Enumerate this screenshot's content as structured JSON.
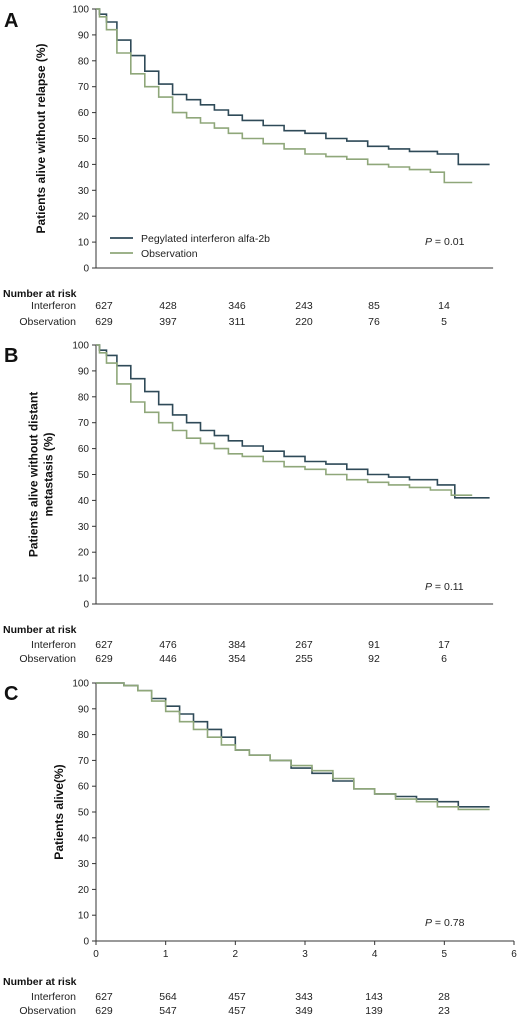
{
  "colors": {
    "interferon": "#2f4a58",
    "observation": "#8fa77a",
    "axis": "#333333"
  },
  "risk_title": "Number at risk",
  "chart_data": [
    {
      "type": "line",
      "panel": "A",
      "ylabel": [
        "Patients alive without relapse (%)"
      ],
      "xlim": [
        0,
        6
      ],
      "ylim": [
        0,
        100
      ],
      "yticks": [
        0,
        10,
        20,
        30,
        40,
        50,
        60,
        70,
        80,
        90,
        100
      ],
      "xticks": [],
      "legend": {
        "placement": "bottom-left",
        "entries": [
          "Pegylated interferon alfa-2b",
          "Observation"
        ]
      },
      "p_value": {
        "label": "P",
        "text": " = 0.01"
      },
      "series": [
        {
          "name": "Pegylated interferon alfa-2b",
          "color_key": "interferon",
          "x": [
            0,
            0.05,
            0.15,
            0.3,
            0.5,
            0.7,
            0.9,
            1.1,
            1.3,
            1.5,
            1.7,
            1.9,
            2.1,
            2.4,
            2.7,
            3.0,
            3.3,
            3.6,
            3.9,
            4.2,
            4.5,
            4.9,
            5.2,
            5.65
          ],
          "y": [
            100,
            98,
            95,
            88,
            82,
            76,
            71,
            67,
            65,
            63,
            61,
            59,
            57,
            55,
            53,
            52,
            50,
            49,
            47,
            46,
            45,
            44,
            40,
            40
          ]
        },
        {
          "name": "Observation",
          "color_key": "observation",
          "x": [
            0,
            0.05,
            0.15,
            0.3,
            0.5,
            0.7,
            0.9,
            1.1,
            1.3,
            1.5,
            1.7,
            1.9,
            2.1,
            2.4,
            2.7,
            3.0,
            3.3,
            3.6,
            3.9,
            4.2,
            4.5,
            4.8,
            5.0,
            5.4
          ],
          "y": [
            100,
            97,
            92,
            83,
            75,
            70,
            66,
            60,
            58,
            56,
            54,
            52,
            50,
            48,
            46,
            44,
            43,
            42,
            40,
            39,
            38,
            37,
            33,
            33
          ]
        }
      ],
      "risk": [
        {
          "label": "Interferon",
          "values": [
            "627",
            "428",
            "346",
            "243",
            "85",
            "14"
          ]
        },
        {
          "label": "Observation",
          "values": [
            "629",
            "397",
            "311",
            "220",
            "76",
            "5"
          ]
        }
      ]
    },
    {
      "type": "line",
      "panel": "B",
      "ylabel": [
        "Patients alive without distant",
        "metastasis (%)"
      ],
      "xlim": [
        0,
        6
      ],
      "ylim": [
        0,
        100
      ],
      "yticks": [
        0,
        10,
        20,
        30,
        40,
        50,
        60,
        70,
        80,
        90,
        100
      ],
      "xticks": [],
      "legend": null,
      "p_value": {
        "label": "P",
        "text": " = 0.11"
      },
      "series": [
        {
          "name": "Pegylated interferon alfa-2b",
          "color_key": "interferon",
          "x": [
            0,
            0.05,
            0.15,
            0.3,
            0.5,
            0.7,
            0.9,
            1.1,
            1.3,
            1.5,
            1.7,
            1.9,
            2.1,
            2.4,
            2.7,
            3.0,
            3.3,
            3.6,
            3.9,
            4.2,
            4.5,
            4.9,
            5.15,
            5.65
          ],
          "y": [
            100,
            98,
            96,
            92,
            87,
            82,
            77,
            73,
            70,
            67,
            65,
            63,
            61,
            59,
            57,
            55,
            54,
            52,
            50,
            49,
            48,
            46,
            41,
            41
          ]
        },
        {
          "name": "Observation",
          "color_key": "observation",
          "x": [
            0,
            0.05,
            0.15,
            0.3,
            0.5,
            0.7,
            0.9,
            1.1,
            1.3,
            1.5,
            1.7,
            1.9,
            2.1,
            2.4,
            2.7,
            3.0,
            3.3,
            3.6,
            3.9,
            4.2,
            4.5,
            4.8,
            5.1,
            5.4
          ],
          "y": [
            100,
            97,
            93,
            85,
            78,
            74,
            70,
            67,
            64,
            62,
            60,
            58,
            57,
            55,
            53,
            52,
            50,
            48,
            47,
            46,
            45,
            44,
            42,
            42
          ]
        }
      ],
      "risk": [
        {
          "label": "Interferon",
          "values": [
            "627",
            "476",
            "384",
            "267",
            "91",
            "17"
          ]
        },
        {
          "label": "Observation",
          "values": [
            "629",
            "446",
            "354",
            "255",
            "92",
            "6"
          ]
        }
      ]
    },
    {
      "type": "line",
      "panel": "C",
      "ylabel": [
        "Patients alive(%)"
      ],
      "xlim": [
        0,
        6
      ],
      "ylim": [
        0,
        100
      ],
      "yticks": [
        0,
        10,
        20,
        30,
        40,
        50,
        60,
        70,
        80,
        90,
        100
      ],
      "xticks": [
        0,
        1,
        2,
        3,
        4,
        5,
        6
      ],
      "legend": null,
      "p_value": {
        "label": "P",
        "text": " = 0.78"
      },
      "series": [
        {
          "name": "Pegylated interferon alfa-2b",
          "color_key": "interferon",
          "x": [
            0,
            0.2,
            0.4,
            0.6,
            0.8,
            1.0,
            1.2,
            1.4,
            1.6,
            1.8,
            2.0,
            2.2,
            2.5,
            2.8,
            3.1,
            3.4,
            3.7,
            4.0,
            4.3,
            4.6,
            4.9,
            5.2,
            5.65
          ],
          "y": [
            100,
            100,
            99,
            97,
            94,
            91,
            88,
            85,
            82,
            79,
            74,
            72,
            70,
            67,
            65,
            62,
            59,
            57,
            56,
            55,
            54,
            52,
            52
          ]
        },
        {
          "name": "Observation",
          "color_key": "observation",
          "x": [
            0,
            0.2,
            0.4,
            0.6,
            0.8,
            1.0,
            1.2,
            1.4,
            1.6,
            1.8,
            2.0,
            2.2,
            2.5,
            2.8,
            3.1,
            3.4,
            3.7,
            4.0,
            4.3,
            4.6,
            4.9,
            5.2,
            5.65
          ],
          "y": [
            100,
            100,
            99,
            97,
            93,
            89,
            85,
            82,
            79,
            76,
            74,
            72,
            70,
            68,
            66,
            63,
            59,
            57,
            55,
            54,
            52,
            51,
            51
          ]
        }
      ],
      "risk": [
        {
          "label": "Interferon",
          "values": [
            "627",
            "564",
            "457",
            "343",
            "143",
            "28"
          ]
        },
        {
          "label": "Observation",
          "values": [
            "629",
            "547",
            "457",
            "349",
            "139",
            "23"
          ]
        }
      ]
    }
  ]
}
